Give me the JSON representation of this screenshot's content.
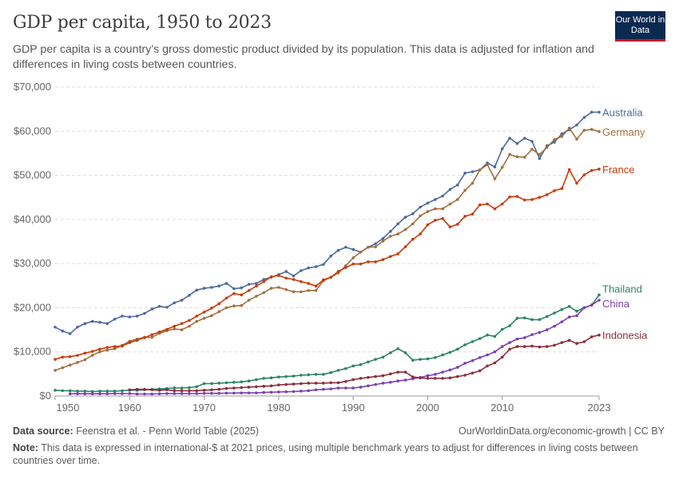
{
  "header": {
    "title": "GDP per capita, 1950 to 2023",
    "subtitle": "GDP per capita is a country’s gross domestic product divided by its population. This data is adjusted for inflation and differences in living costs between countries.",
    "logo_text": "Our World in Data"
  },
  "footer": {
    "source_label": "Data source:",
    "source": "Feenstra et al. - Penn World Table (2025)",
    "url": "OurWorldinData.org/economic-growth | CC BY",
    "note_label": "Note:",
    "note": "This data is expressed in international-$ at 2021 prices, using multiple benchmark years to adjust for differences in living costs between countries over time."
  },
  "chart_data": {
    "type": "line",
    "title": "GDP per capita, 1950 to 2023",
    "xlabel": "",
    "ylabel": "",
    "xlim": [
      1950,
      2023
    ],
    "ylim": [
      0,
      70000
    ],
    "grid": "horizontal dashed",
    "legend": "inline labels at right end of lines",
    "x_ticks": [
      "1950",
      "1960",
      "1970",
      "1980",
      "1990",
      "2000",
      "2010",
      "2023"
    ],
    "y_ticks": [
      "$0",
      "$10,000",
      "$20,000",
      "$30,000",
      "$40,000",
      "$50,000",
      "$60,000",
      "$70,000"
    ],
    "start_year": 1950,
    "series": [
      {
        "name": "Australia",
        "color": "#4c6a9c",
        "values": [
          15600,
          14700,
          14100,
          15600,
          16400,
          16900,
          16700,
          16400,
          17400,
          18100,
          17900,
          18100,
          18700,
          19700,
          20300,
          20100,
          21100,
          21700,
          22800,
          24000,
          24400,
          24600,
          24900,
          25500,
          24300,
          24500,
          25300,
          25500,
          26400,
          26900,
          27500,
          28200,
          27200,
          28400,
          29000,
          29300,
          29800,
          31700,
          33000,
          33700,
          33200,
          32600,
          33700,
          34500,
          35700,
          37300,
          39000,
          40500,
          41300,
          42800,
          43700,
          44500,
          45300,
          46800,
          47800,
          50500,
          50800,
          51200,
          52800,
          51900,
          56000,
          58400,
          57200,
          58400,
          57700,
          53800,
          56700,
          57500,
          59400,
          60300,
          61400,
          63100,
          64300,
          64300
        ]
      },
      {
        "name": "Germany",
        "color": "#a2703f",
        "values": [
          5800,
          6400,
          7000,
          7600,
          8200,
          9200,
          10000,
          10400,
          10700,
          11500,
          12400,
          12900,
          13300,
          13300,
          14200,
          14800,
          15200,
          15000,
          15800,
          16900,
          17600,
          18200,
          19100,
          20000,
          20400,
          20500,
          21700,
          22600,
          23400,
          24400,
          24600,
          24100,
          23600,
          23600,
          23900,
          23900,
          26100,
          26900,
          27900,
          29500,
          31300,
          32600,
          33700,
          33800,
          35100,
          36200,
          36700,
          37700,
          39000,
          40800,
          41800,
          42400,
          42400,
          43500,
          44500,
          46600,
          48200,
          51200,
          52400,
          49200,
          51800,
          54700,
          54200,
          54100,
          55900,
          54700,
          56300,
          58100,
          58800,
          60700,
          58200,
          60200,
          60400,
          59900
        ]
      },
      {
        "name": "France",
        "color": "#c83b07",
        "values": [
          8300,
          8800,
          8900,
          9200,
          9700,
          10100,
          10600,
          11000,
          11200,
          11300,
          12100,
          12600,
          13200,
          13900,
          14500,
          15100,
          15800,
          16400,
          17100,
          18100,
          19000,
          19900,
          20900,
          22200,
          23200,
          22900,
          23900,
          24900,
          25900,
          27000,
          27300,
          26700,
          26400,
          25900,
          25500,
          24900,
          26300,
          26900,
          28200,
          29100,
          29900,
          29900,
          30400,
          30400,
          30900,
          31600,
          32200,
          33800,
          35500,
          36700,
          38800,
          39800,
          40200,
          38300,
          38900,
          40700,
          41200,
          43300,
          43500,
          42400,
          43500,
          45100,
          45200,
          44400,
          44500,
          45000,
          45600,
          46500,
          47000,
          51300,
          48200,
          50100,
          51100,
          51400
        ]
      },
      {
        "name": "Thailand",
        "color": "#2c8465",
        "values": [
          1300,
          1200,
          1200,
          1100,
          1100,
          1000,
          1100,
          1100,
          1100,
          1200,
          1300,
          1300,
          1400,
          1500,
          1600,
          1700,
          1800,
          1800,
          1900,
          2100,
          2800,
          2800,
          2900,
          3000,
          3100,
          3200,
          3400,
          3700,
          4000,
          4100,
          4300,
          4400,
          4500,
          4700,
          4800,
          4900,
          4900,
          5300,
          5800,
          6200,
          6800,
          7100,
          7700,
          8300,
          8800,
          9800,
          10700,
          9800,
          8100,
          8300,
          8400,
          8700,
          9300,
          9900,
          10600,
          11600,
          12300,
          13000,
          13800,
          13500,
          15100,
          15900,
          17600,
          17700,
          17300,
          17300,
          18000,
          18800,
          19600,
          20300,
          19200,
          20000,
          20600,
          22900
        ]
      },
      {
        "name": "China",
        "color": "#7b3fb0",
        "values": [
          null,
          null,
          500,
          500,
          500,
          500,
          500,
          500,
          550,
          550,
          550,
          450,
          450,
          450,
          500,
          550,
          550,
          550,
          550,
          550,
          600,
          600,
          600,
          650,
          650,
          700,
          700,
          700,
          800,
          850,
          900,
          950,
          1000,
          1100,
          1200,
          1400,
          1500,
          1600,
          1800,
          1800,
          1800,
          2000,
          2300,
          2600,
          2900,
          3100,
          3400,
          3600,
          3900,
          4200,
          4600,
          4900,
          5400,
          5900,
          6500,
          7400,
          8000,
          8700,
          9300,
          10000,
          11200,
          12100,
          12900,
          13200,
          13900,
          14400,
          15000,
          15800,
          16800,
          17900,
          18200,
          20000,
          20600,
          21700
        ]
      },
      {
        "name": "Indonesia",
        "color": "#8c2c3c",
        "values": [
          null,
          null,
          null,
          null,
          null,
          null,
          null,
          null,
          null,
          null,
          1400,
          1500,
          1500,
          1400,
          1300,
          1400,
          1200,
          1200,
          1200,
          1200,
          1300,
          1400,
          1500,
          1700,
          1800,
          1900,
          2000,
          2100,
          2200,
          2300,
          2500,
          2600,
          2700,
          2800,
          2900,
          2900,
          2900,
          3000,
          3000,
          3300,
          3700,
          4000,
          4200,
          4400,
          4600,
          5000,
          5400,
          5400,
          4300,
          4100,
          4000,
          4000,
          4000,
          4100,
          4400,
          4700,
          5200,
          5700,
          6800,
          7500,
          8800,
          10600,
          11200,
          11200,
          11300,
          11100,
          11200,
          11500,
          12100,
          12600,
          11900,
          12300,
          13400,
          13800
        ]
      }
    ]
  }
}
